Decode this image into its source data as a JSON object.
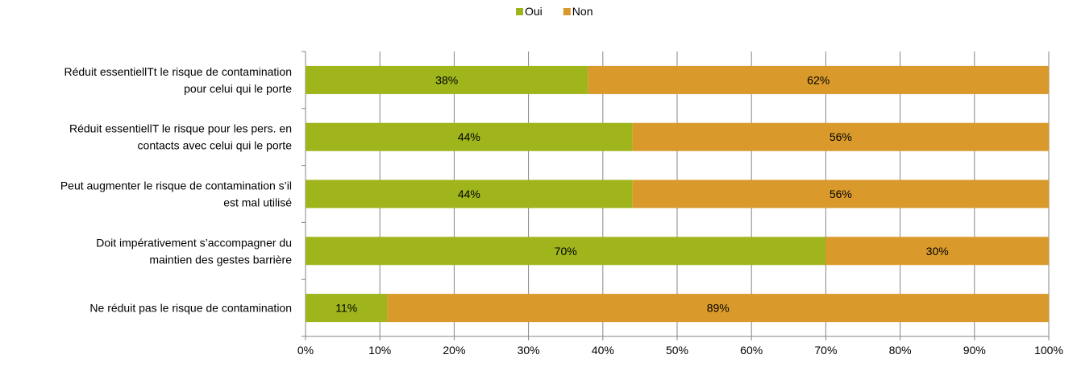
{
  "chart_data": {
    "type": "bar",
    "orientation": "horizontal",
    "stacked": true,
    "categories": [
      [
        "Réduit essentiellTt le risque de contamination",
        "pour celui qui le porte"
      ],
      [
        "Réduit essentiellT le risque pour les pers. en",
        "contacts avec celui qui le porte"
      ],
      [
        "Peut augmenter le risque de contamination s’il",
        "est mal utilisé"
      ],
      [
        "Doit impérativement s’accompagner du",
        "maintien des gestes barrière"
      ],
      [
        "Ne réduit pas le risque de contamination"
      ]
    ],
    "series": [
      {
        "name": "Oui",
        "color": "#9fb51b",
        "values": [
          38,
          44,
          44,
          70,
          11
        ],
        "labels": [
          "38%",
          "44%",
          "44%",
          "70%",
          "11%"
        ]
      },
      {
        "name": "Non",
        "color": "#d99a2b",
        "values": [
          62,
          56,
          56,
          30,
          89
        ],
        "labels": [
          "62%",
          "56%",
          "56%",
          "30%",
          "89%"
        ]
      }
    ],
    "xlim": [
      0,
      100
    ],
    "xticks": [
      "0%",
      "10%",
      "20%",
      "30%",
      "40%",
      "50%",
      "60%",
      "70%",
      "80%",
      "90%",
      "100%"
    ],
    "grid": true,
    "legend_position": "top-center"
  }
}
